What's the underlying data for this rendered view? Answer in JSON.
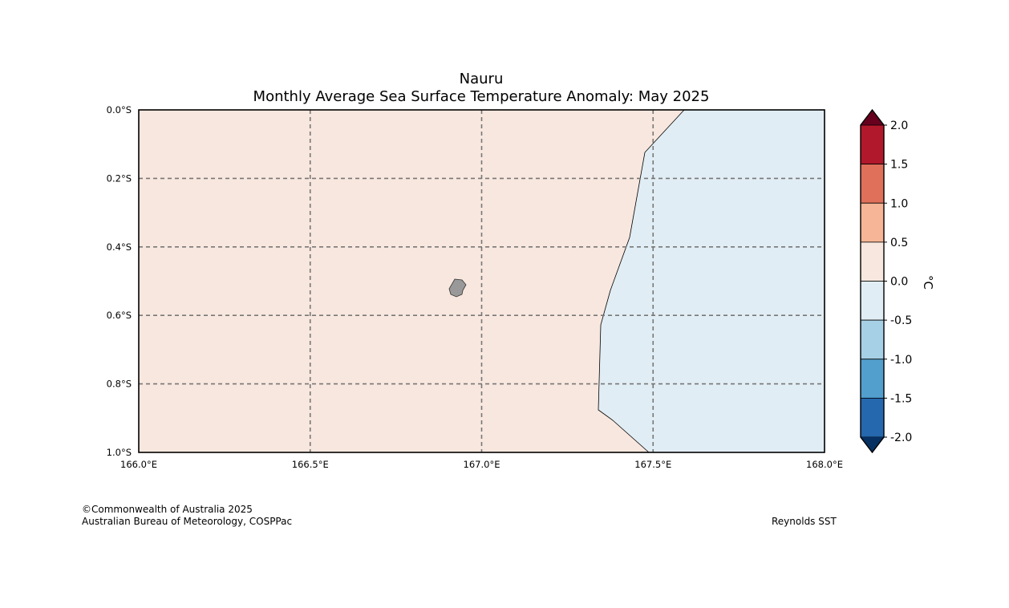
{
  "title": "Nauru",
  "subtitle": "Monthly Average Sea Surface Temperature Anomaly: May 2025",
  "map": {
    "lon_range": [
      166.0,
      168.0
    ],
    "lat_range": [
      0.0,
      -1.0
    ],
    "lon_ticks": [
      "166.0°E",
      "166.5°E",
      "167.0°E",
      "167.5°E",
      "168.0°E"
    ],
    "lat_ticks": [
      "0.0°S",
      "0.2°S",
      "0.4°S",
      "0.6°S",
      "0.8°S",
      "1.0°S"
    ],
    "gridlines": true,
    "warm_region_color": "#f8e7de",
    "cool_region_color": "#e1edf4",
    "land_color": "#999999"
  },
  "colorbar": {
    "unit_label": "°C",
    "tick_labels": [
      "2.0",
      "1.5",
      "1.0",
      "0.5",
      "0.0",
      "-0.5",
      "-1.0",
      "-1.5",
      "-2.0"
    ],
    "bin_colors": [
      "#b2182b",
      "#e0705a",
      "#f6b596",
      "#f8e7de",
      "#e1edf4",
      "#a6d0e5",
      "#529fcd",
      "#2568ad"
    ],
    "over_color": "#67001f",
    "under_color": "#053061"
  },
  "footer": {
    "copyright": "©Commonwealth of Australia 2025",
    "agency": "Australian Bureau of Meteorology, COSPPac",
    "data_source": "Reynolds SST"
  }
}
